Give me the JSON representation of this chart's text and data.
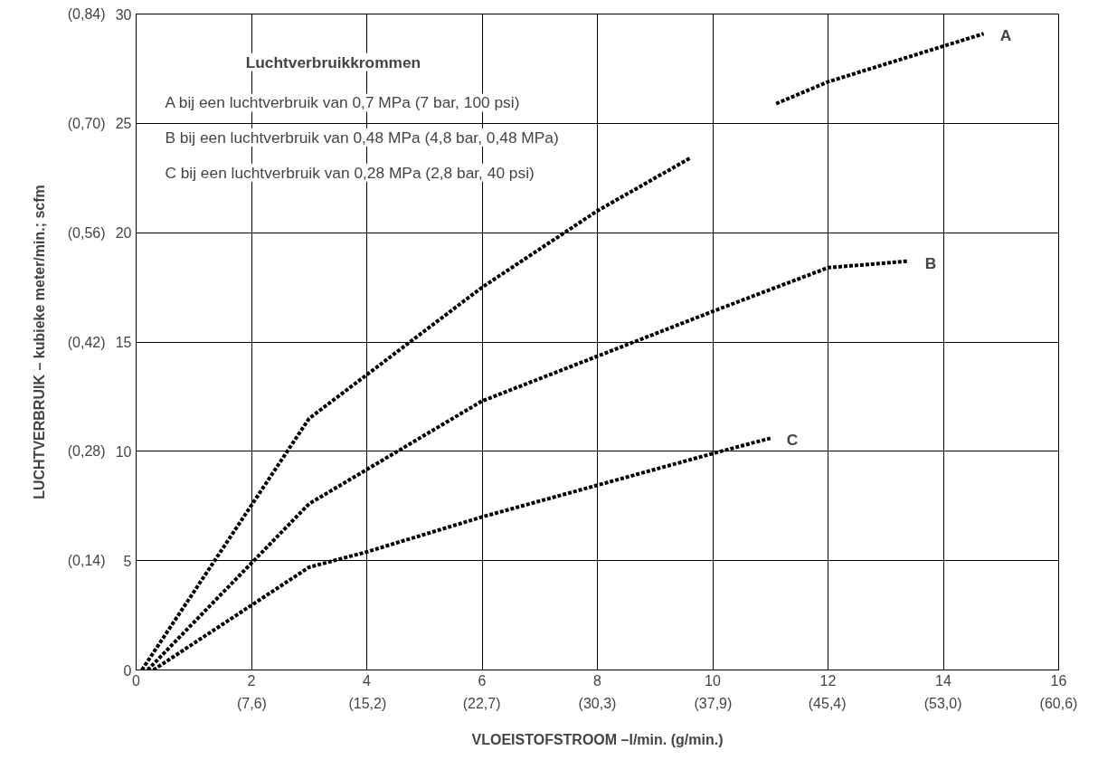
{
  "chart_data": {
    "type": "line",
    "xlabel": "VLOEISTOFSTROOM –l/min. (g/min.)",
    "y2label": "LUCHTVERBRUIK – kubieke meter/min.; scfm",
    "legend_title": "Luchtverbruikkrommen",
    "annotations": [
      "A   bij een luchtverbruik van 0,7 MPa (7 bar, 100 psi)",
      "B   bij een luchtverbruik van 0,48 MPa (4,8 bar, 0,48 MPa)",
      "C   bij een luchtverbruik van 0,28 MPa (2,8 bar, 40 psi)"
    ],
    "xlim": [
      0,
      16
    ],
    "ylim": [
      0,
      30
    ],
    "xticks": [
      0,
      2,
      4,
      6,
      8,
      10,
      12,
      14,
      16
    ],
    "yticks": [
      0,
      5,
      10,
      15,
      20,
      25,
      30
    ],
    "x2lim": [
      0,
      60.6
    ],
    "x2ticks": [
      {
        "value": 7.6,
        "label": "(7,6)"
      },
      {
        "value": 15.2,
        "label": "(15,2)"
      },
      {
        "value": 22.7,
        "label": "(22,7)"
      },
      {
        "value": 30.3,
        "label": "(30,3)"
      },
      {
        "value": 37.9,
        "label": "(37,9)"
      },
      {
        "value": 45.4,
        "label": "(45,4)"
      },
      {
        "value": 53.0,
        "label": "(53,0)"
      },
      {
        "value": 60.6,
        "label": "(60,6)"
      }
    ],
    "y2lim": [
      0,
      0.84
    ],
    "y2ticks": [
      {
        "value": 0.14,
        "label": "(0,14)"
      },
      {
        "value": 0.28,
        "label": "(0,28)"
      },
      {
        "value": 0.42,
        "label": "(0,42)"
      },
      {
        "value": 0.56,
        "label": "(0,56)"
      },
      {
        "value": 0.7,
        "label": "(0,70)"
      },
      {
        "value": 0.84,
        "label": "(0,84)"
      }
    ],
    "grid": true,
    "line_style": "dashed",
    "marker": "none",
    "series": [
      {
        "name": "A",
        "color": "#000000",
        "x": [
          0.1,
          3,
          6,
          8,
          9.6,
          10.3,
          11.1,
          12,
          14.7
        ],
        "values": [
          0,
          11.5,
          17.5,
          21.0,
          23.4,
          null,
          25.9,
          26.9,
          29.1
        ]
      },
      {
        "name": "B",
        "color": "#000000",
        "x": [
          0.2,
          3,
          6,
          10,
          12,
          13.4
        ],
        "values": [
          0,
          7.6,
          12.3,
          16.4,
          18.4,
          18.7
        ]
      },
      {
        "name": "C",
        "color": "#000000",
        "x": [
          0.3,
          3,
          4,
          6,
          10,
          11
        ],
        "values": [
          0,
          4.7,
          5.4,
          7.0,
          9.9,
          10.6
        ]
      }
    ]
  }
}
